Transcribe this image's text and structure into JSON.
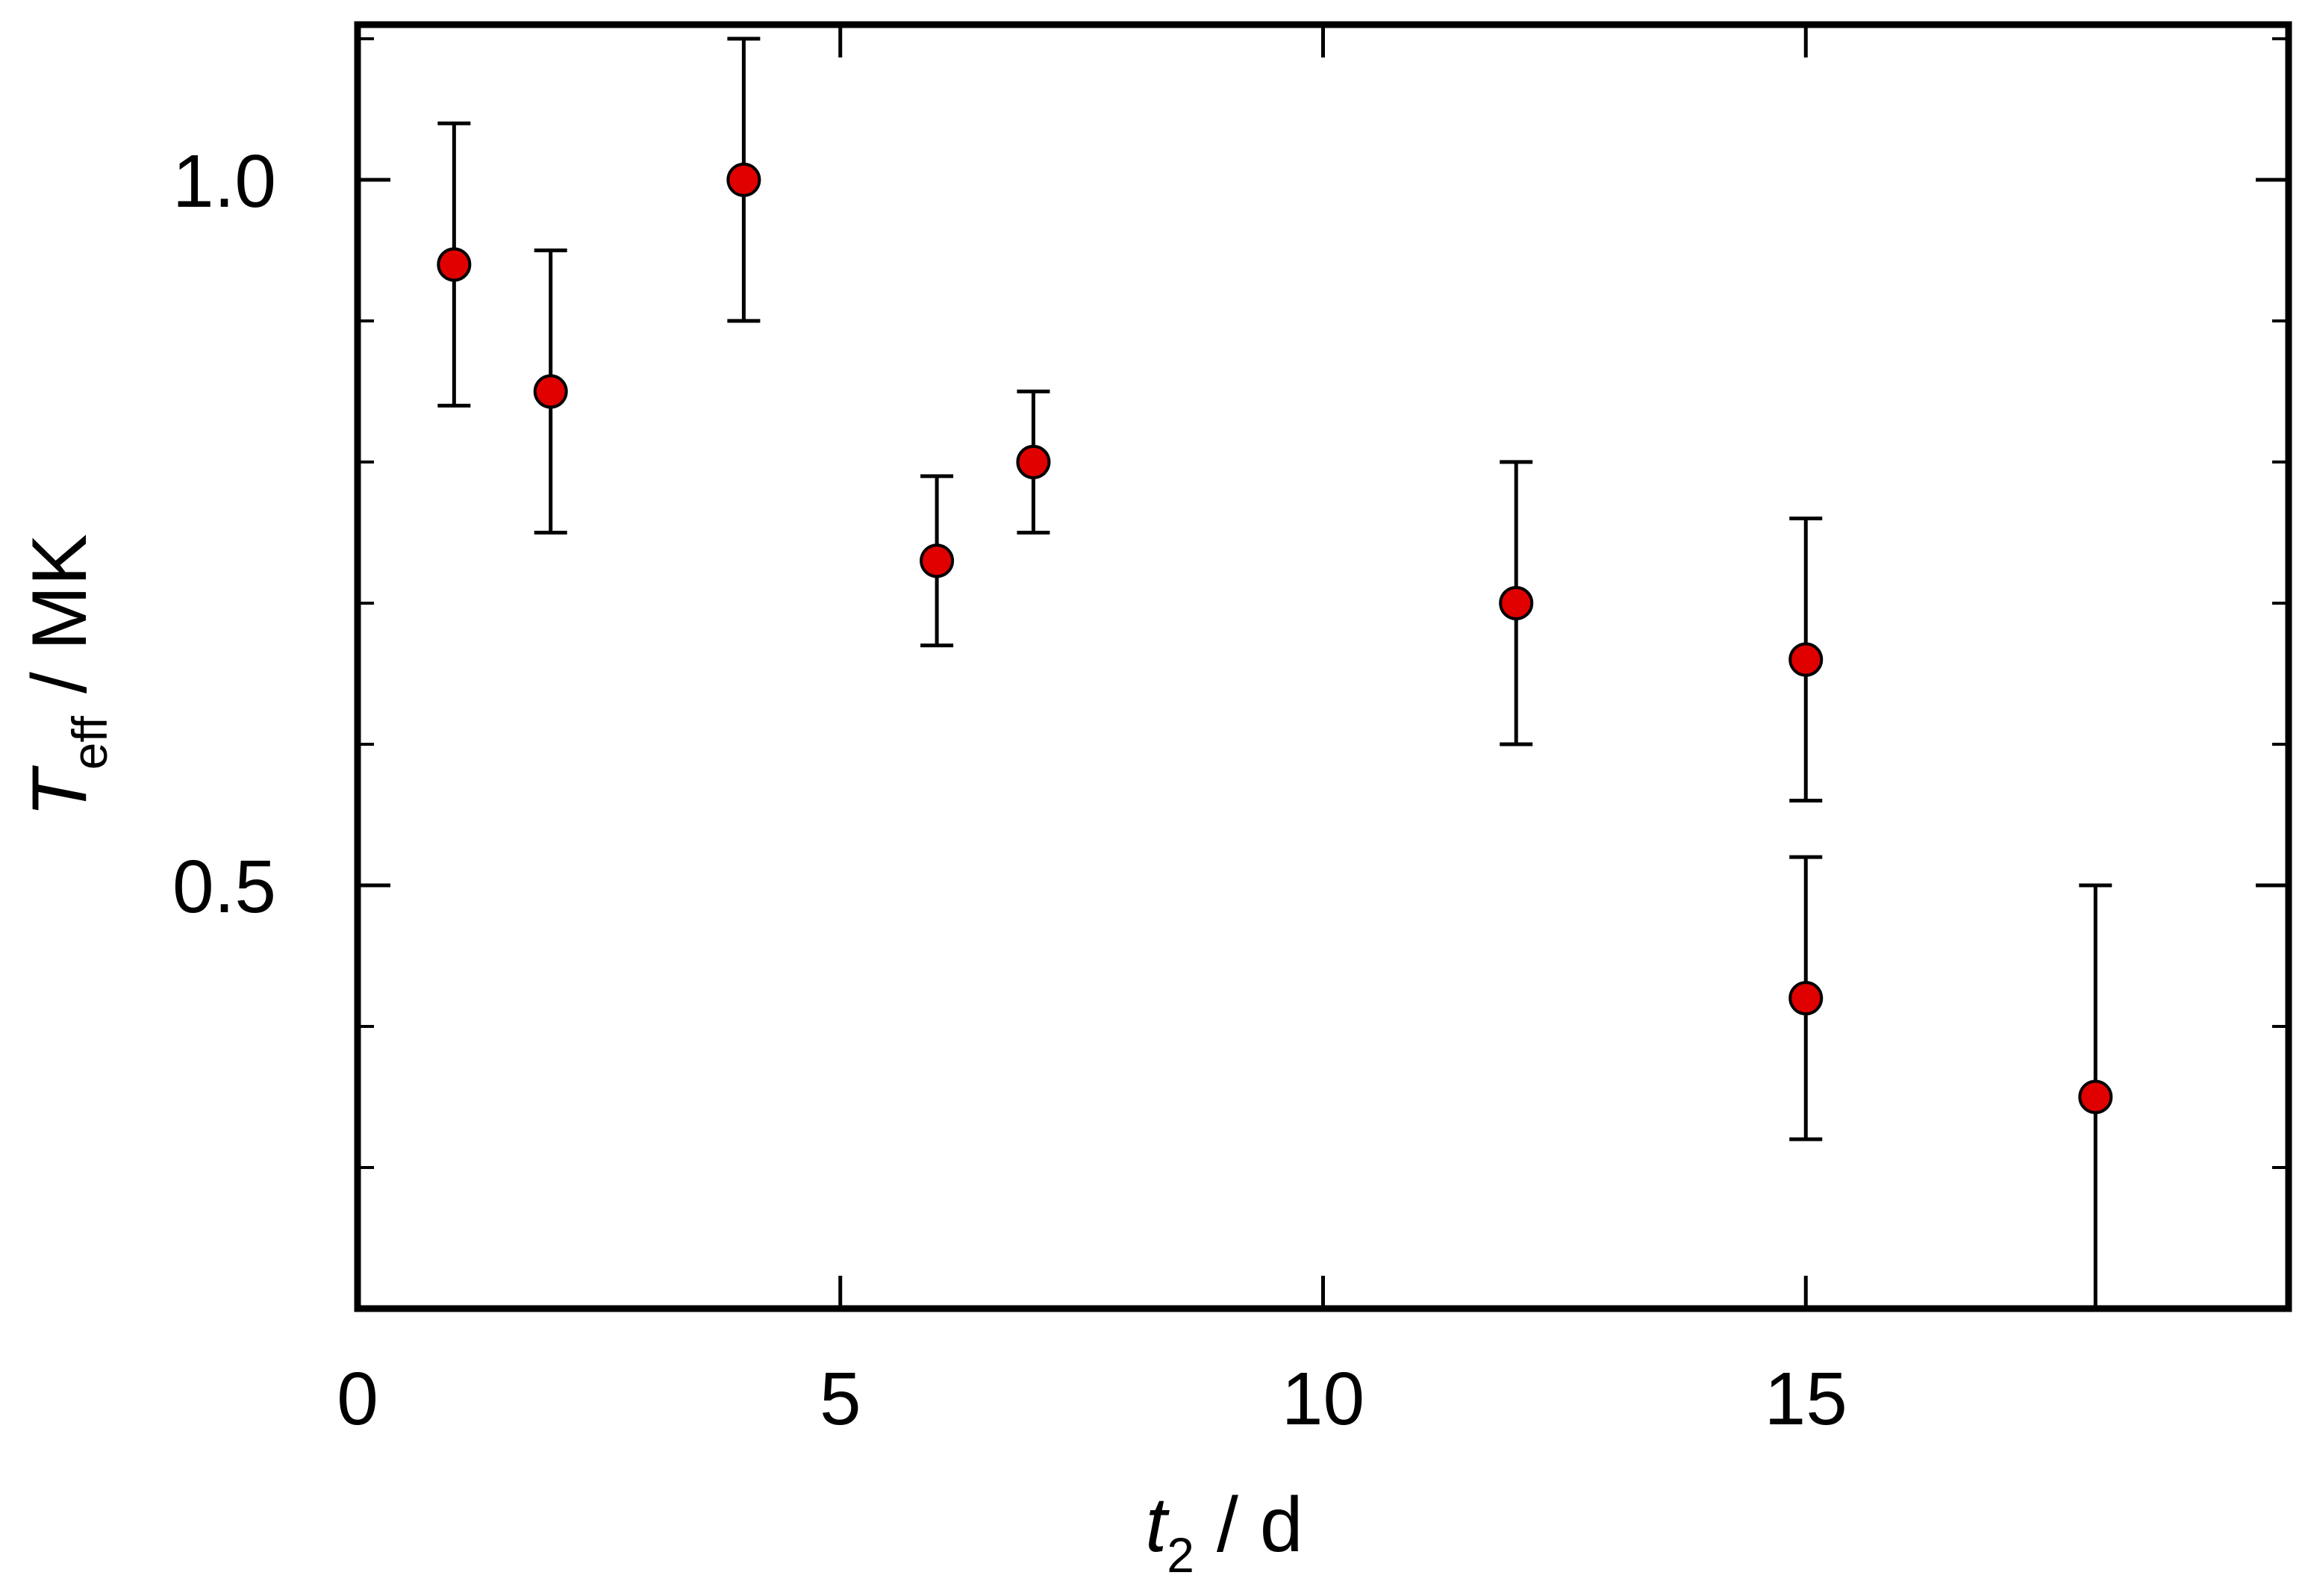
{
  "chart_data": {
    "type": "scatter",
    "xlabel": {
      "symbol": "t",
      "subscript": "2",
      "unit": "/ d"
    },
    "ylabel": {
      "symbol": "T",
      "subscript": "eff",
      "unit": "/ MK"
    },
    "xlim": [
      0,
      20
    ],
    "ylim": [
      0.2,
      1.11
    ],
    "x_ticks": [
      {
        "value": 0,
        "label": "0"
      },
      {
        "value": 5,
        "label": "5"
      },
      {
        "value": 10,
        "label": "10"
      },
      {
        "value": 15,
        "label": "15"
      }
    ],
    "y_ticks": [
      {
        "value": 0.5,
        "label": "0.5"
      },
      {
        "value": 1.0,
        "label": "1.0"
      }
    ],
    "y_minor_ticks": [
      0.2,
      0.3,
      0.4,
      0.6,
      0.7,
      0.8,
      0.9,
      1.1
    ],
    "x_minor_ticks": [],
    "grid": false,
    "series": [
      {
        "marker_color": "#e00000",
        "points": [
          {
            "x": 1,
            "y": 0.94,
            "err_low": 0.84,
            "err_high": 1.04
          },
          {
            "x": 2,
            "y": 0.85,
            "err_low": 0.75,
            "err_high": 0.95
          },
          {
            "x": 4,
            "y": 1.0,
            "err_low": 0.9,
            "err_high": 1.1
          },
          {
            "x": 6,
            "y": 0.73,
            "err_low": 0.67,
            "err_high": 0.79
          },
          {
            "x": 7,
            "y": 0.8,
            "err_low": 0.75,
            "err_high": 0.85
          },
          {
            "x": 12,
            "y": 0.7,
            "err_low": 0.6,
            "err_high": 0.8
          },
          {
            "x": 15,
            "y": 0.66,
            "err_low": 0.56,
            "err_high": 0.76
          },
          {
            "x": 15,
            "y": 0.42,
            "err_low": 0.32,
            "err_high": 0.52
          },
          {
            "x": 18,
            "y": 0.35,
            "err_low": 0.2,
            "err_high": 0.5
          }
        ]
      }
    ]
  }
}
